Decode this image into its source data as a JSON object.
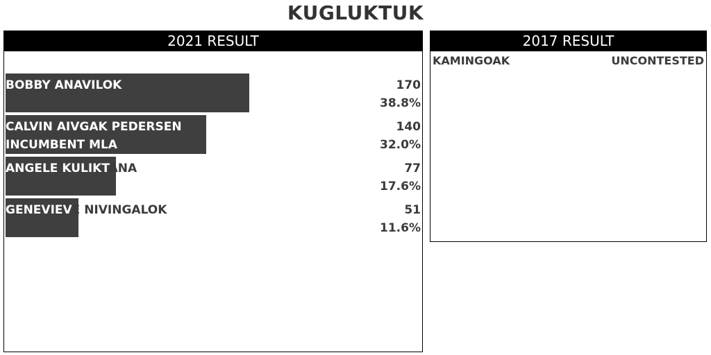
{
  "title": "KUGLUKTUK",
  "panels": {
    "current_header": "2021 RESULT",
    "previous_header": "2017 RESULT"
  },
  "previous": {
    "name": "KAMINGOAK",
    "status": "UNCONTESTED"
  },
  "chart_data": {
    "type": "bar",
    "orientation": "horizontal",
    "title": "2021 RESULT",
    "categories": [
      "BOBBY ANAVILOK",
      "CALVIN AIVGAK PEDERSEN",
      "ANGELE KULIKTANA",
      "GENEVIEVE NIVINGALOK"
    ],
    "subtitles": [
      "",
      "INCUMBENT MLA",
      "",
      ""
    ],
    "values": [
      170,
      140,
      77,
      51
    ],
    "percent_labels": [
      "38.8%",
      "32.0%",
      "17.6%",
      "11.6%"
    ],
    "xlim": [
      0,
      290
    ],
    "bar_color": "#3f3f3f",
    "grid": false,
    "legend": "none"
  }
}
